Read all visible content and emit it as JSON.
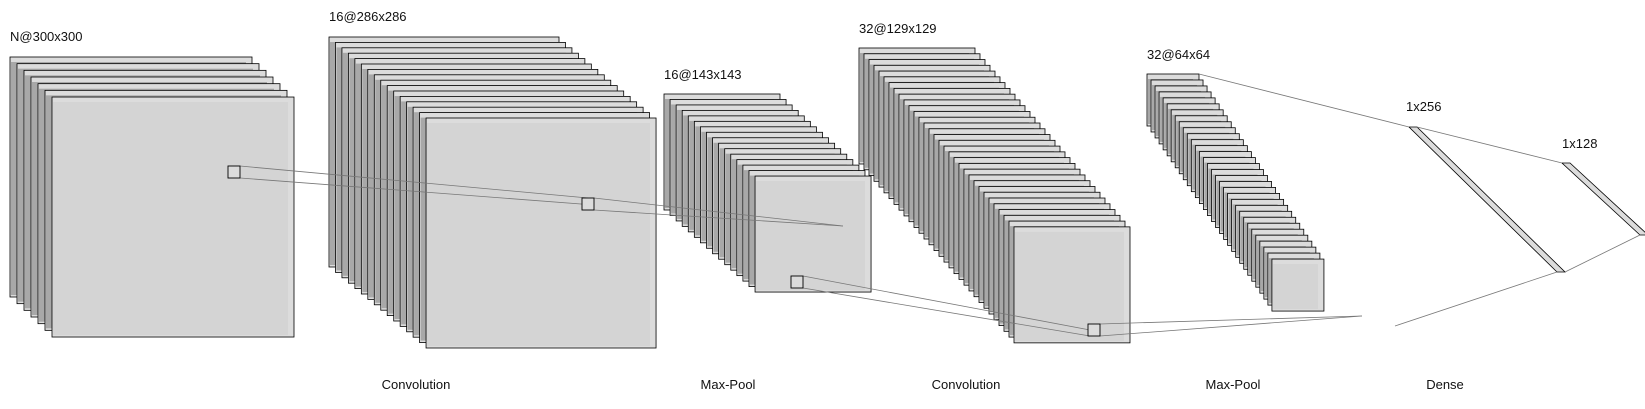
{
  "colors": {
    "background": "#ffffff",
    "outline": "#000000",
    "fill_dark": "#a8a8a8",
    "fill_light": "#dcdcdc",
    "fill_front": "#d4d4d4",
    "connector": "#777777"
  },
  "layers": [
    {
      "id": "input",
      "label": "N@300x300"
    },
    {
      "id": "conv1",
      "label": "16@286x286"
    },
    {
      "id": "pool1",
      "label": "16@143x143"
    },
    {
      "id": "conv2",
      "label": "32@129x129"
    },
    {
      "id": "pool2",
      "label": "32@64x64"
    },
    {
      "id": "dense1",
      "label": "1x256"
    },
    {
      "id": "dense2",
      "label": "1x128"
    }
  ],
  "operations": [
    {
      "id": "op-convolution-1",
      "label": "Convolution"
    },
    {
      "id": "op-max-pool-1",
      "label": "Max-Pool"
    },
    {
      "id": "op-convolution-2",
      "label": "Convolution"
    },
    {
      "id": "op-max-pool-2",
      "label": "Max-Pool"
    },
    {
      "id": "op-dense",
      "label": "Dense"
    }
  ]
}
